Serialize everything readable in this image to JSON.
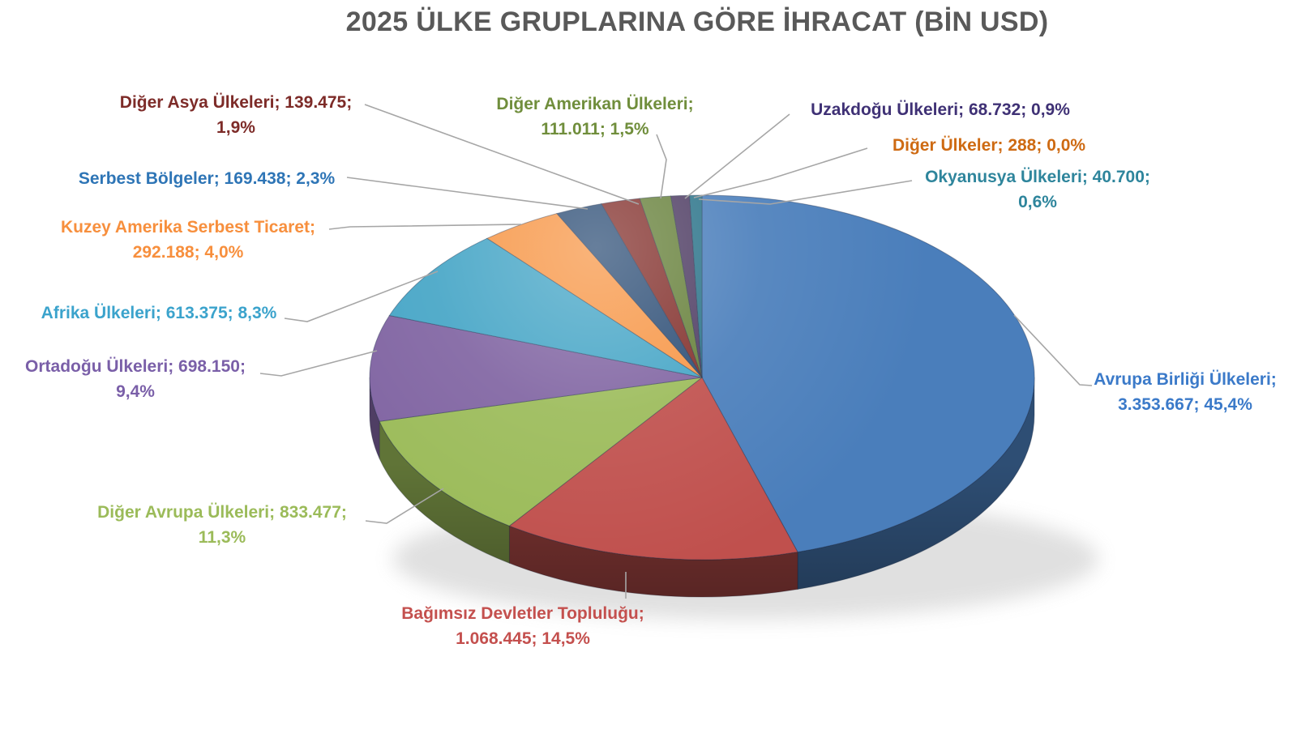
{
  "title": "2025 ÜLKE GRUPLARINA GÖRE İHRACAT (BİN USD)",
  "title_color": "#595959",
  "chart_data": {
    "type": "pie",
    "style": "3d",
    "title": "2025 ÜLKE GRUPLARINA GÖRE İHRACAT (BİN USD)",
    "unit": "BİN USD",
    "direction": "clockwise",
    "start_angle_deg": 0,
    "legend": "none",
    "leader_lines": true,
    "leader_line_color": "#A6A6A6",
    "categories": [
      "Avrupa Birliği Ülkeleri",
      "Bağımsız Devletler Topluluğu",
      "Diğer Avrupa Ülkeleri",
      "Ortadoğu Ülkeleri",
      "Afrika Ülkeleri",
      "Kuzey Amerika Serbest Ticaret",
      "Serbest Bölgeler",
      "Diğer Asya Ülkeleri",
      "Diğer Amerikan Ülkeleri",
      "Uzakdoğu Ülkeleri",
      "Diğer Ülkeler",
      "Okyanusya Ülkeleri"
    ],
    "values": [
      3353667,
      1068445,
      833477,
      698150,
      613375,
      292188,
      169438,
      139475,
      111011,
      68732,
      288,
      40700
    ],
    "percents": [
      45.4,
      14.5,
      11.3,
      9.4,
      8.3,
      4.0,
      2.3,
      1.9,
      1.5,
      0.9,
      0.0,
      0.6
    ],
    "value_labels": [
      "3.353.667",
      "1.068.445",
      "833.477",
      "698.150",
      "613.375",
      "292.188",
      "169.438",
      "139.475",
      "111.011",
      "68.732",
      "288",
      "40.700"
    ],
    "pct_labels": [
      "45,4%",
      "14,5%",
      "11,3%",
      "9,4%",
      "8,3%",
      "4,0%",
      "2,3%",
      "1,9%",
      "1,5%",
      "0,9%",
      "0,0%",
      "0,6%"
    ],
    "colors": [
      "#4A7EBB",
      "#C0504D",
      "#9BBB59",
      "#8064A2",
      "#45A5C6",
      "#F79646",
      "#2C4D75",
      "#822F2B",
      "#66803A",
      "#4D3B62",
      "#B65708",
      "#2A7389"
    ]
  },
  "labels": [
    {
      "line1": "Avrupa Birliği Ülkeleri;",
      "line2": "3.353.667; 45,4%",
      "color": "#3B7AC9"
    },
    {
      "line1": "Bağımsız Devletler Topluluğu;",
      "line2": "1.068.445; 14,5%",
      "color": "#C4504E"
    },
    {
      "line1": "Diğer Avrupa Ülkeleri; 833.477;",
      "line2": "11,3%",
      "color": "#9BBB59"
    },
    {
      "line1": "Ortadoğu Ülkeleri; 698.150;",
      "line2": "9,4%",
      "color": "#7A5FA8"
    },
    {
      "line1": "Afrika Ülkeleri; 613.375; 8,3%",
      "line2": "",
      "color": "#3BA3CC"
    },
    {
      "line1": "Kuzey Amerika Serbest Ticaret;",
      "line2": "292.188; 4,0%",
      "color": "#F78F3D"
    },
    {
      "line1": "Serbest Bölgeler; 169.438; 2,3%",
      "line2": "",
      "color": "#2E75B6"
    },
    {
      "line1": "Diğer Asya Ülkeleri; 139.475;",
      "line2": "1,9%",
      "color": "#7D2B28"
    },
    {
      "line1": "Diğer Amerikan Ülkeleri;",
      "line2": "111.011; 1,5%",
      "color": "#708E3C"
    },
    {
      "line1": "Uzakdoğu Ülkeleri; 68.732; 0,9%",
      "line2": "",
      "color": "#3F3175"
    },
    {
      "line1": "Diğer Ülkeler; 288; 0,0%",
      "line2": "",
      "color": "#CE6A12"
    },
    {
      "line1": "Okyanusya Ülkeleri; 40.700;",
      "line2": "0,6%",
      "color": "#2E859C"
    }
  ]
}
